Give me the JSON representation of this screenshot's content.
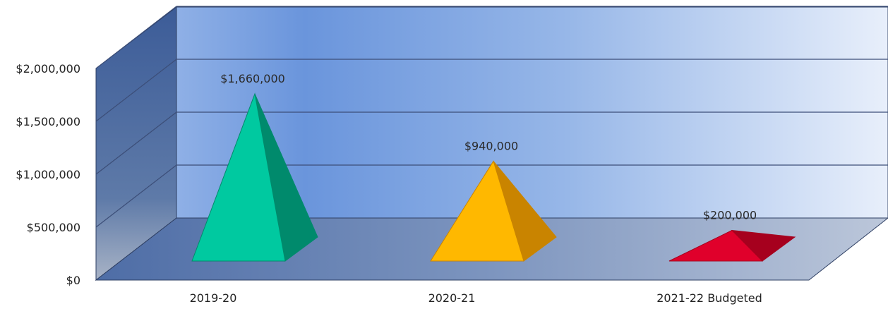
{
  "chart_data": {
    "type": "bar",
    "subtype": "3d-pyramid",
    "categories": [
      "2019-20",
      "2020-21",
      "2021-22 Budgeted"
    ],
    "values": [
      1660000,
      940000,
      200000
    ],
    "data_labels": [
      "$1,660,000",
      "$940,000",
      "$200,000"
    ],
    "yticks": [
      0,
      500000,
      1000000,
      1500000,
      2000000
    ],
    "ytick_labels": [
      "$0",
      "$500,000",
      "$1,000,000",
      "$1,500,000",
      "$2,000,000"
    ],
    "ylim": [
      0,
      2000000
    ],
    "grid": true,
    "title": "",
    "xlabel": "",
    "ylabel": "",
    "colors": {
      "pyramids": [
        "#00C9A0",
        "#FFB800",
        "#E0002B"
      ],
      "pyramids_dark": [
        "#008A6C",
        "#C98400",
        "#A6001E"
      ],
      "back_wall_left": "#6B96DD",
      "back_wall_right": "#E6EEFA",
      "side_wall": "#3F5F99",
      "floor": "#5F7CB0",
      "gridline": "#3C4E78"
    }
  }
}
